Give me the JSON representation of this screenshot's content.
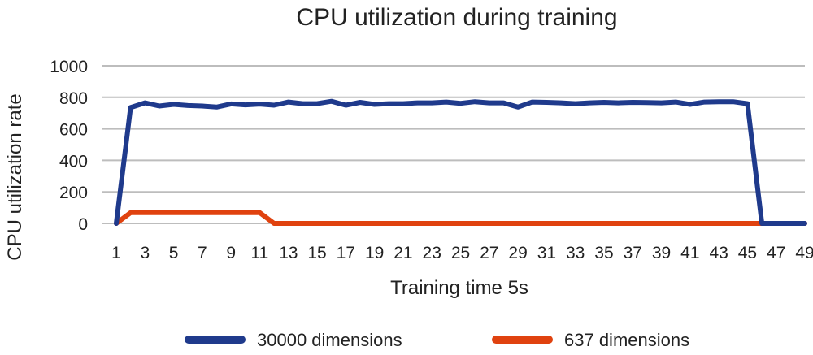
{
  "chart_data": {
    "type": "line",
    "title": "CPU utilization during training",
    "xlabel": "Training time 5s",
    "ylabel": "CPU utilization rate",
    "ylim": [
      0,
      1000
    ],
    "yticks": [
      0,
      200,
      400,
      600,
      800,
      1000
    ],
    "grid": true,
    "legend_position": "bottom",
    "x": [
      1,
      2,
      3,
      4,
      5,
      6,
      7,
      8,
      9,
      10,
      11,
      12,
      13,
      14,
      15,
      16,
      17,
      18,
      19,
      20,
      21,
      22,
      23,
      24,
      25,
      26,
      27,
      28,
      29,
      30,
      31,
      32,
      33,
      34,
      35,
      36,
      37,
      38,
      39,
      40,
      41,
      42,
      43,
      44,
      45,
      46,
      47,
      48,
      49
    ],
    "xtick_labels": [
      "1",
      "3",
      "5",
      "7",
      "9",
      "11",
      "13",
      "15",
      "17",
      "19",
      "21",
      "23",
      "25",
      "27",
      "29",
      "31",
      "33",
      "35",
      "37",
      "39",
      "41",
      "43",
      "45",
      "47",
      "49"
    ],
    "series": [
      {
        "name": "30000 dimensions",
        "color": "#1f3a8c",
        "values": [
          0,
          735,
          765,
          745,
          755,
          748,
          745,
          738,
          758,
          752,
          757,
          750,
          770,
          760,
          760,
          775,
          750,
          768,
          755,
          760,
          760,
          765,
          765,
          770,
          762,
          772,
          765,
          765,
          738,
          770,
          768,
          765,
          760,
          765,
          768,
          765,
          768,
          767,
          765,
          770,
          755,
          770,
          772,
          772,
          760,
          0,
          0,
          0,
          0
        ]
      },
      {
        "name": "637 dimensions",
        "color": "#e0420f",
        "values": [
          0,
          68,
          68,
          68,
          68,
          68,
          68,
          68,
          68,
          68,
          68,
          0,
          0,
          0,
          0,
          0,
          0,
          0,
          0,
          0,
          0,
          0,
          0,
          0,
          0,
          0,
          0,
          0,
          0,
          0,
          0,
          0,
          0,
          0,
          0,
          0,
          0,
          0,
          0,
          0,
          0,
          0,
          0,
          0,
          0,
          0,
          0,
          0,
          0
        ]
      }
    ]
  }
}
